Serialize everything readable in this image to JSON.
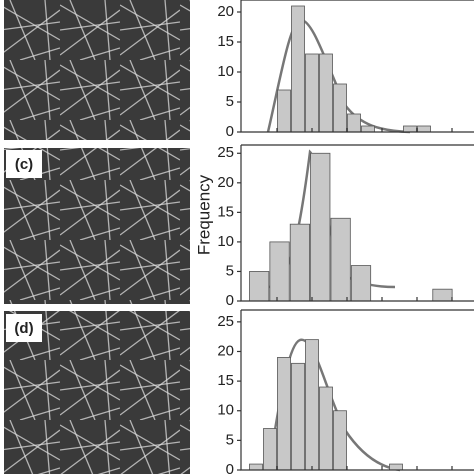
{
  "panel_labels": [
    "(c)",
    "(d)"
  ],
  "y_axis_label": "Frequency",
  "chart_data": [
    {
      "type": "bar",
      "color": "#c8c8c8",
      "categories": [
        null,
        null,
        null,
        null,
        null,
        null,
        null,
        null,
        null,
        null,
        null,
        null,
        null,
        null,
        null,
        null
      ],
      "values": [
        0,
        0,
        7,
        21,
        13,
        13,
        8,
        3,
        1,
        0,
        0,
        1,
        1,
        0,
        0,
        0
      ],
      "ylim": [
        0,
        22
      ],
      "yticks": [
        0,
        5,
        10,
        15,
        20
      ]
    },
    {
      "type": "bar",
      "color": "#c8c8c8",
      "categories": [
        null,
        null,
        null,
        null,
        null,
        null,
        null,
        null,
        null,
        null,
        null
      ],
      "values": [
        5,
        10,
        13,
        25,
        14,
        6,
        0,
        0,
        0,
        2,
        0
      ],
      "ylim": [
        0,
        26.4
      ],
      "yticks": [
        0,
        5,
        10,
        15,
        20,
        25
      ]
    },
    {
      "type": "bar",
      "color": "#c8c8c8",
      "categories": [
        null,
        null,
        null,
        null,
        null,
        null,
        null,
        null,
        null,
        null,
        null,
        null,
        null,
        null,
        null,
        null
      ],
      "values": [
        1,
        7,
        19,
        18,
        22,
        14,
        10,
        0,
        0,
        0,
        1,
        0,
        0,
        0,
        0,
        0
      ],
      "ylim": [
        0,
        27
      ],
      "yticks": [
        0,
        5,
        10,
        15,
        20,
        25
      ]
    }
  ]
}
